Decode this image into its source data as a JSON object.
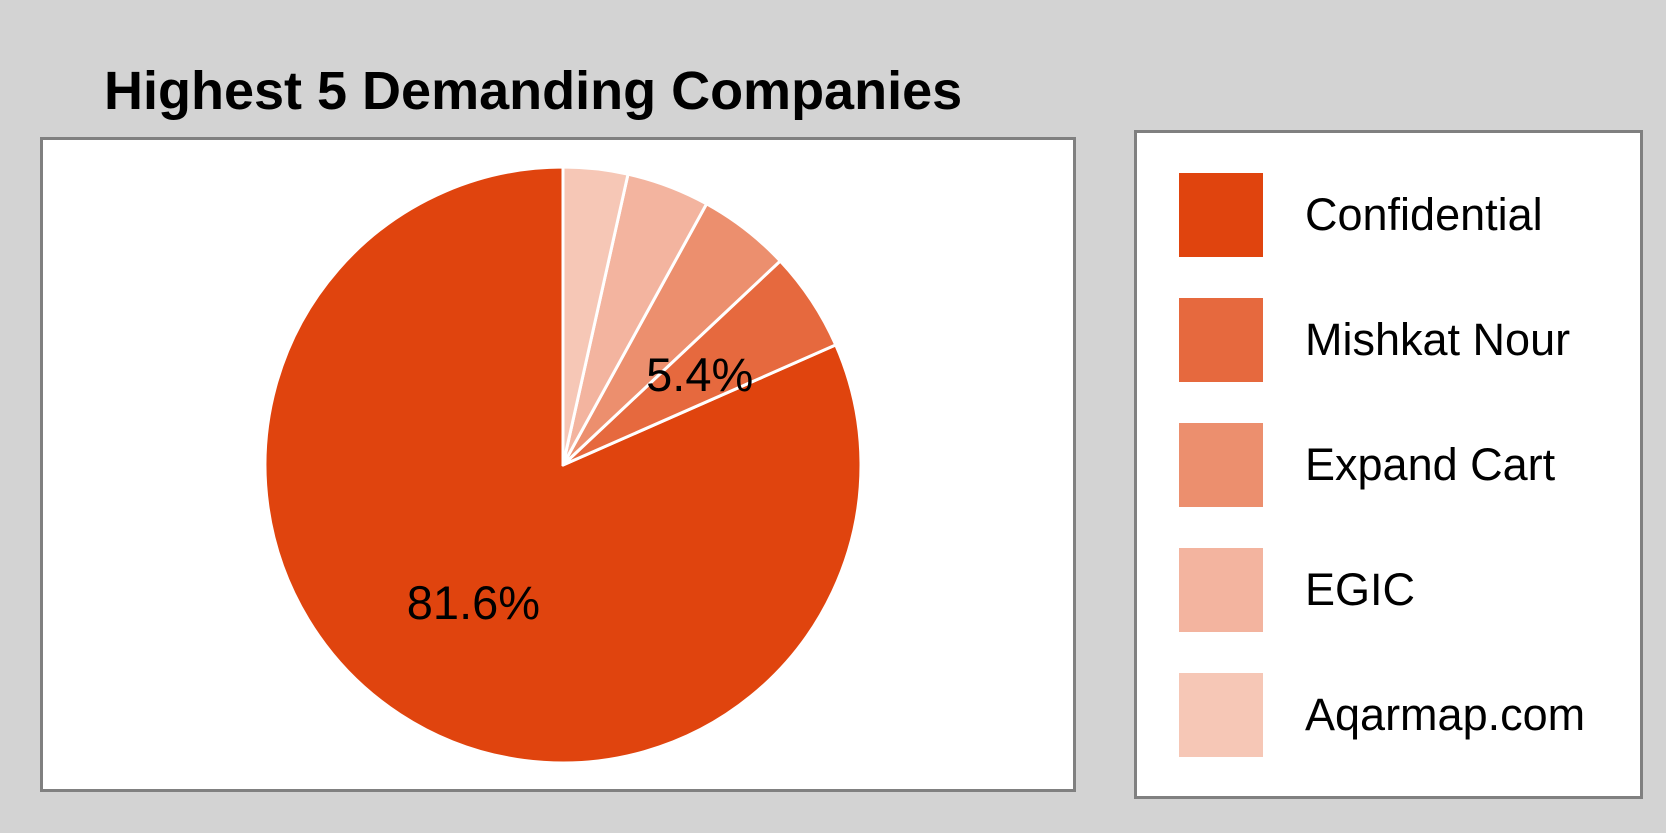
{
  "chart_data": {
    "type": "pie",
    "title": "Highest 5 Demanding Companies",
    "categories": [
      "Confidential",
      "Mishkat Nour",
      "Expand Cart",
      "EGIC",
      "Aqarmap.com"
    ],
    "values": [
      81.6,
      5.4,
      5.0,
      4.5,
      3.5
    ],
    "shown_labels": [
      "81.6%",
      "5.4%",
      "",
      "",
      ""
    ],
    "colors": [
      "#e0440e",
      "#e6693e",
      "#ec8f6e",
      "#f3b49f",
      "#f6c7b6"
    ],
    "start_angle_deg": 0,
    "direction": "counterclockwise",
    "slice_border_color": "#ffffff",
    "legend_position": "right"
  }
}
